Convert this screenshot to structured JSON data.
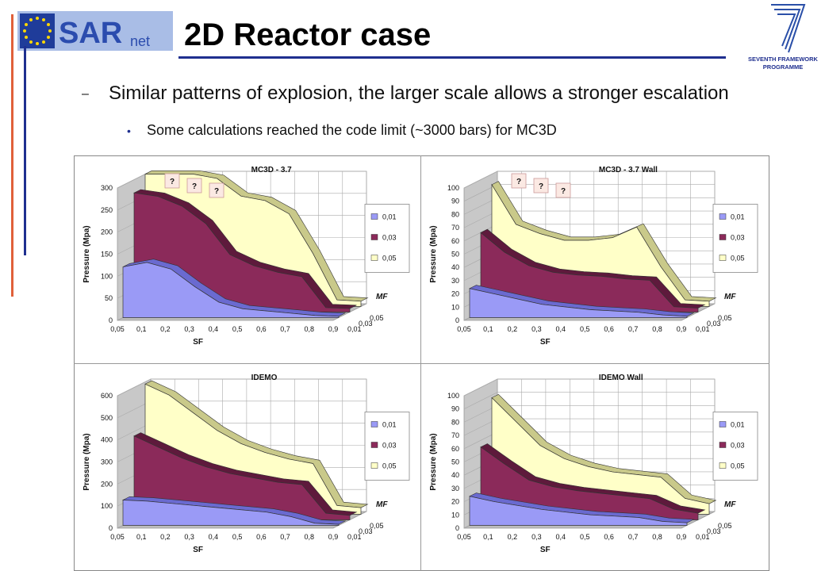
{
  "slide": {
    "title": "2D Reactor case",
    "bullet1": "Similar patterns of explosion, the larger scale allows a stronger escalation",
    "bullet1_marker": "–",
    "bullet2": "Some calculations reached the code limit (~3000 bars) for MC3D",
    "bullet2_marker": "•"
  },
  "logos": {
    "left": {
      "text_main": "SAR",
      "text_sub": "net"
    },
    "right": {
      "line1": "SEVENTH FRAMEWORK",
      "line2": "PROGRAMME"
    }
  },
  "colors": {
    "accent_blue": "#1f2f8f",
    "accent_red": "#e0603a",
    "series_001": "#9a9af6",
    "series_003": "#8b2a5a",
    "series_005": "#ffffc8"
  },
  "chart_data": [
    {
      "type": "area",
      "title": "MC3D - 3.7",
      "xlabel": "SF",
      "ylabel": "Pressure (Mpa)",
      "depth_label": "MF",
      "ylim": [
        0,
        300
      ],
      "yticks": [
        "0",
        "50",
        "100",
        "150",
        "200",
        "250",
        "300"
      ],
      "categories": [
        "0,05",
        "0,1",
        "0,2",
        "0,3",
        "0,4",
        "0,5",
        "0,6",
        "0,7",
        "0,8",
        "0,9"
      ],
      "series": [
        {
          "name": "0,01",
          "values": [
            115,
            125,
            110,
            70,
            35,
            20,
            15,
            10,
            5,
            3
          ]
        },
        {
          "name": "0,03",
          "values": [
            270,
            262,
            240,
            200,
            130,
            105,
            90,
            80,
            10,
            8
          ]
        },
        {
          "name": "0,05",
          "values": [
            300,
            300,
            300,
            290,
            250,
            240,
            210,
            120,
            15,
            12
          ]
        }
      ],
      "annotations": [
        "?",
        "?",
        "?"
      ]
    },
    {
      "type": "area",
      "title": "MC3D - 3.7 Wall",
      "xlabel": "SF",
      "ylabel": "Pressure (Mpa)",
      "depth_label": "MF",
      "ylim": [
        0,
        100
      ],
      "yticks": [
        "0",
        "10",
        "20",
        "30",
        "40",
        "50",
        "60",
        "70",
        "80",
        "90",
        "100"
      ],
      "categories": [
        "0,05",
        "0,1",
        "0,2",
        "0,3",
        "0,4",
        "0,5",
        "0,6",
        "0,7",
        "0,8",
        "0,9"
      ],
      "series": [
        {
          "name": "0,01",
          "values": [
            22,
            18,
            14,
            10,
            8,
            6,
            5,
            4,
            2,
            1
          ]
        },
        {
          "name": "0,03",
          "values": [
            60,
            45,
            35,
            30,
            28,
            27,
            25,
            24,
            4,
            3
          ]
        },
        {
          "name": "0,05",
          "values": [
            92,
            62,
            55,
            50,
            50,
            52,
            60,
            30,
            5,
            4
          ]
        }
      ],
      "annotations": [
        "?",
        "?",
        "?"
      ]
    },
    {
      "type": "area",
      "title": "IDEMO",
      "xlabel": "SF",
      "ylabel": "Pressure (Mpa)",
      "depth_label": "MF",
      "ylim": [
        0,
        600
      ],
      "yticks": [
        "0",
        "100",
        "200",
        "300",
        "400",
        "500",
        "600"
      ],
      "categories": [
        "0,05",
        "0,1",
        "0,2",
        "0,3",
        "0,4",
        "0,5",
        "0,6",
        "0,7",
        "0,8",
        "0,9"
      ],
      "series": [
        {
          "name": "0,01",
          "values": [
            115,
            110,
            100,
            90,
            80,
            70,
            60,
            40,
            10,
            5
          ]
        },
        {
          "name": "0,03",
          "values": [
            380,
            330,
            280,
            240,
            210,
            190,
            170,
            160,
            30,
            20
          ]
        },
        {
          "name": "0,05",
          "values": [
            590,
            540,
            460,
            380,
            320,
            280,
            250,
            230,
            40,
            30
          ]
        }
      ]
    },
    {
      "type": "area",
      "title": "IDEMO Wall",
      "xlabel": "SF",
      "ylabel": "Pressure (Mpa)",
      "depth_label": "MF",
      "ylim": [
        0,
        100
      ],
      "yticks": [
        "0",
        "10",
        "20",
        "30",
        "40",
        "50",
        "60",
        "70",
        "80",
        "90",
        "100"
      ],
      "categories": [
        "0,05",
        "0,1",
        "0,2",
        "0,3",
        "0,4",
        "0,5",
        "0,6",
        "0,7",
        "0,8",
        "0,9"
      ],
      "series": [
        {
          "name": "0,01",
          "values": [
            22,
            18,
            15,
            12,
            10,
            8,
            7,
            6,
            3,
            2
          ]
        },
        {
          "name": "0,03",
          "values": [
            55,
            42,
            30,
            25,
            22,
            20,
            18,
            16,
            8,
            5
          ]
        },
        {
          "name": "0,05",
          "values": [
            88,
            70,
            52,
            42,
            36,
            32,
            30,
            28,
            12,
            8
          ]
        }
      ]
    }
  ]
}
